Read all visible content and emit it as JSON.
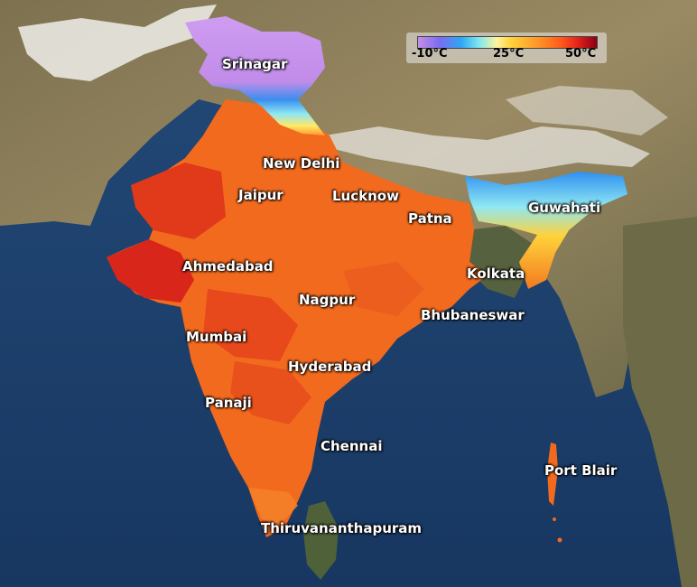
{
  "legend": {
    "min_label": "-10°C",
    "mid_label": "25°C",
    "max_label": "50°C",
    "colors": [
      "#c58ee8",
      "#2fa6f5",
      "#fff4a0",
      "#ff9a2a",
      "#e0201a",
      "#8a0010"
    ]
  },
  "cities": {
    "srinagar": "Srinagar",
    "new_delhi": "New Delhi",
    "jaipur": "Jaipur",
    "lucknow": "Lucknow",
    "patna": "Patna",
    "guwahati": "Guwahati",
    "ahmedabad": "Ahmedabad",
    "kolkata": "Kolkata",
    "nagpur": "Nagpur",
    "bhubaneswar": "Bhubaneswar",
    "mumbai": "Mumbai",
    "hyderabad": "Hyderabad",
    "panaji": "Panaji",
    "chennai": "Chennai",
    "port_blair": "Port Blair",
    "thiruvananthapuram": "Thiruvananthapuram"
  },
  "colors": {
    "ocean": "#1d3f6e",
    "land": "#8a7a55",
    "heat_orange": "#f26a1e",
    "heat_red": "#d8261a",
    "cold_purple": "#c99af0",
    "snow": "#f2f2f2"
  }
}
